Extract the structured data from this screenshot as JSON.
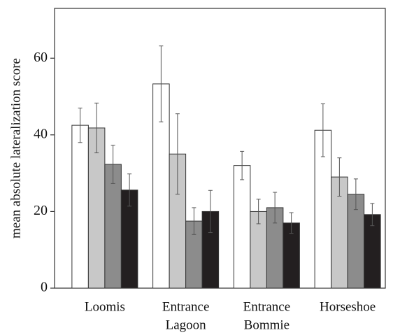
{
  "chart_data": {
    "type": "bar",
    "y_label": "mean absolute lateralization score",
    "categories": [
      [
        "Loomis"
      ],
      [
        "Entrance",
        "Lagoon"
      ],
      [
        "Entrance",
        "Bommie"
      ],
      [
        "Horseshoe"
      ]
    ],
    "series": [
      {
        "color": "#ffffff",
        "values": [
          42.5,
          53.3,
          32,
          41.2
        ],
        "errors": [
          4.5,
          9.9,
          3.7,
          6.9
        ]
      },
      {
        "color": "#c8c8c8",
        "values": [
          41.8,
          35,
          20,
          29
        ],
        "errors": [
          6.5,
          10.5,
          3.2,
          5
        ]
      },
      {
        "color": "#8c8c8c",
        "values": [
          32.3,
          17.5,
          21,
          24.5
        ],
        "errors": [
          5,
          3.5,
          4,
          4
        ]
      },
      {
        "color": "#231f20",
        "values": [
          25.6,
          20,
          17,
          19.2
        ],
        "errors": [
          4.2,
          5.5,
          2.7,
          2.9
        ]
      }
    ],
    "ylim": [
      0,
      73
    ],
    "yticks": [
      0,
      20,
      40,
      60
    ]
  }
}
